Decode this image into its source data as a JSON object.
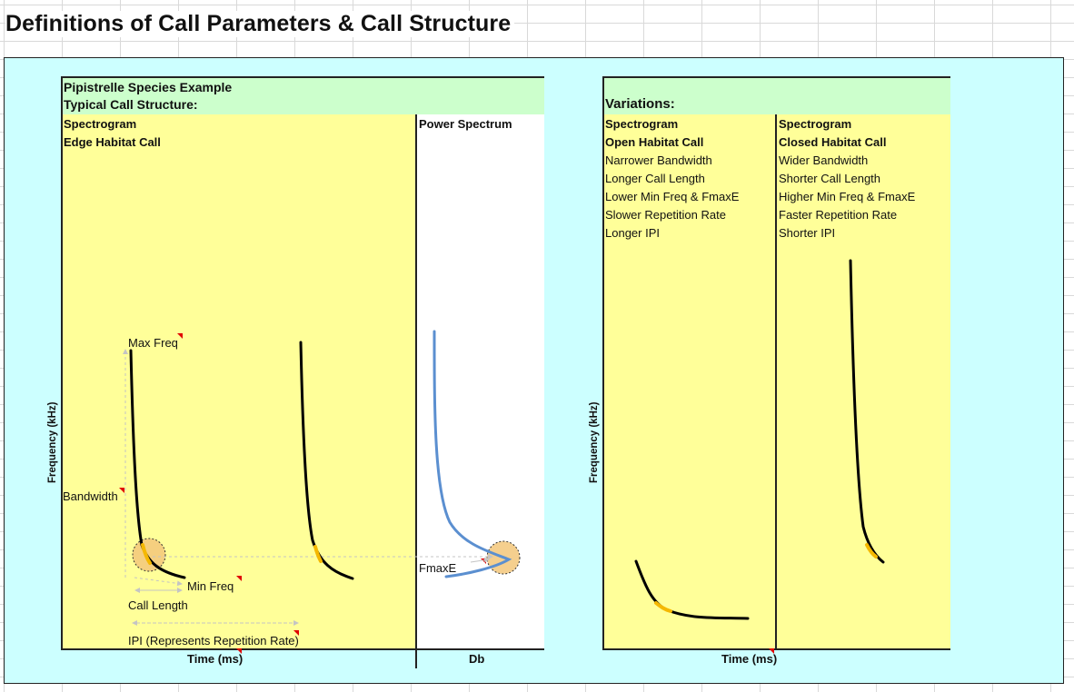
{
  "title": "Definitions of Call Parameters & Call Structure",
  "example": {
    "species": "Pipistrelle Species Example",
    "structure": "Typical Call Structure:",
    "spectrogram_label": "Spectrogram",
    "call_type": "Edge Habitat Call",
    "power_label": "Power Spectrum",
    "y_axis": "Frequency (kHz)",
    "x_axis": "Time (ms)",
    "db_label": "Db",
    "annotations": {
      "max_freq": "Max Freq",
      "bandwidth": "Bandwidth",
      "min_freq": "Min Freq",
      "call_length": "Call Length",
      "ipi": "IPI (Represents Repetition Rate)",
      "fmaxe": "FmaxE"
    }
  },
  "variations": {
    "title": "Variations:",
    "y_axis": "Frequency (kHz)",
    "x_axis": "Time (ms)",
    "open": {
      "spectrogram_label": "Spectrogram",
      "call_type": "Open Habitat Call",
      "traits": [
        "Narrower Bandwidth",
        "Longer Call Length",
        "Lower Min Freq & FmaxE",
        "Slower Repetition Rate",
        "Longer IPI"
      ]
    },
    "closed": {
      "spectrogram_label": "Spectrogram",
      "call_type": "Closed Habitat Call",
      "traits": [
        "Wider Bandwidth",
        "Shorter Call Length",
        "Higher Min Freq & FmaxE",
        "Faster Repetition Rate",
        "Shorter IPI"
      ]
    }
  },
  "colors": {
    "call": "#000000",
    "fmaxe_segment": "#f5b800",
    "power_curve": "#5b8fd0",
    "highlight": "#f3c77a",
    "annotation_arrow": "#c8c8c8",
    "comment_marker": "#e00000"
  }
}
